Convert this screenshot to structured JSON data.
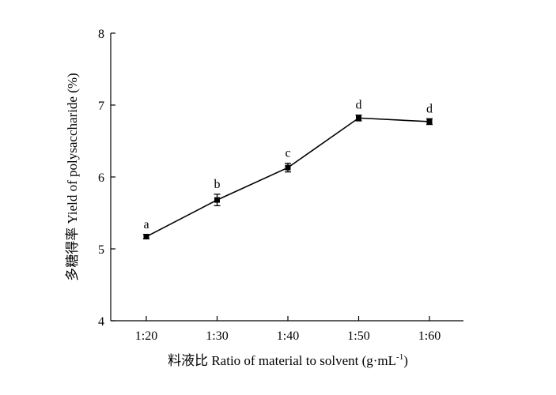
{
  "chart_data": {
    "type": "line",
    "categories": [
      "1:20",
      "1:30",
      "1:40",
      "1:50",
      "1:60"
    ],
    "series": [
      {
        "values": [
          5.17,
          5.68,
          6.13,
          6.82,
          6.77
        ],
        "errors": [
          0.03,
          0.08,
          0.06,
          0.04,
          0.04
        ],
        "markers": [
          "a",
          "b",
          "c",
          "d",
          "d"
        ]
      }
    ],
    "ylim": [
      4,
      8
    ],
    "yticks": [
      "4",
      "5",
      "6",
      "7",
      "8"
    ],
    "xlabel": "料液比 Ratio of material to solvent (g·mL",
    "xlabel_sup": "-1",
    "xlabel_end": ")",
    "ylabel": "多糖得率 Yield of polysaccharide (%)",
    "grid": false,
    "line_color": "#000000"
  }
}
